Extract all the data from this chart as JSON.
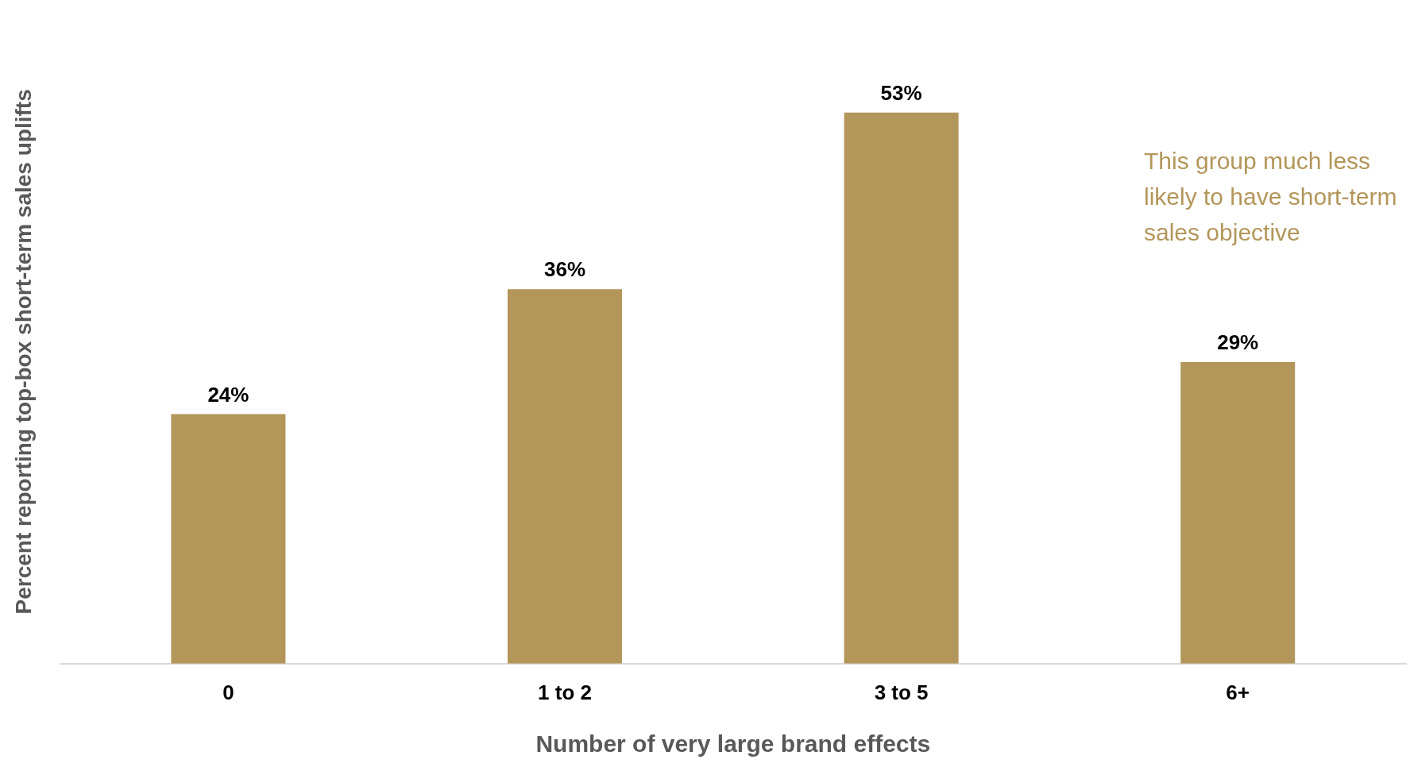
{
  "chart_data": {
    "type": "bar",
    "xlabel": "Number of very large brand effects",
    "ylabel": "Percent reporting top-box short-term sales uplifts",
    "categories": [
      "0",
      "1 to 2",
      "3 to 5",
      "6+"
    ],
    "values": [
      24,
      36,
      53,
      29
    ],
    "color": "#b3965a",
    "value_labels": [
      "24%",
      "36%",
      "53%",
      "29%"
    ],
    "annotations": [
      "This group much less likely to have short-term sales objective"
    ],
    "grid": false,
    "legend": false
  }
}
